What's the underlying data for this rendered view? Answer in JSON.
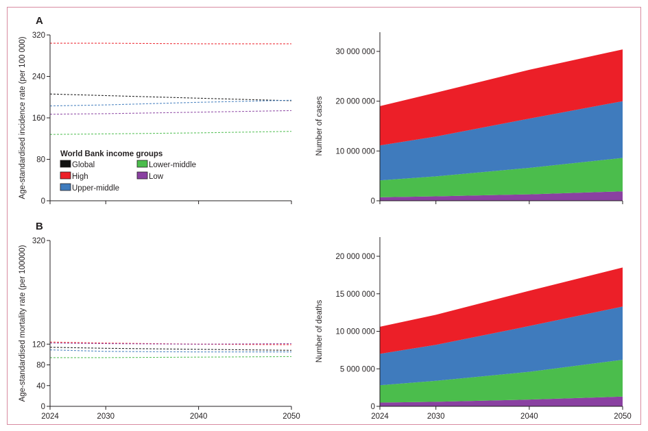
{
  "colors": {
    "Global": "#111111",
    "High": "#ec1f28",
    "Upper-middle": "#3f7bbd",
    "Lower-middle": "#4bbd4c",
    "Low": "#8a41a1"
  },
  "legend": {
    "title": "World Bank income groups",
    "items": [
      "Global",
      "High",
      "Upper-middle",
      "Lower-middle",
      "Low"
    ]
  },
  "chart_data": [
    {
      "id": "A-rate",
      "panel": "A",
      "type": "line",
      "title": "",
      "xlabel": "",
      "ylabel": "Age-standardised incidence rate (per 100 000)",
      "x": [
        2024,
        2030,
        2040,
        2050
      ],
      "xlim": [
        2024,
        2050
      ],
      "ylim": [
        0,
        320
      ],
      "xticks": [
        "2024",
        "2030",
        "2040",
        "2050"
      ],
      "yticks": [
        0,
        80,
        160,
        240,
        320
      ],
      "ytick_labels": [
        "0",
        "80",
        "160",
        "240",
        "320"
      ],
      "line_style": "dashed",
      "grid": false,
      "legend_position": "bottom-left",
      "series": [
        {
          "name": "High",
          "values": [
            304,
            304,
            303,
            303
          ]
        },
        {
          "name": "Global",
          "values": [
            206,
            203,
            198,
            193
          ]
        },
        {
          "name": "Upper-middle",
          "values": [
            183,
            185,
            190,
            194
          ]
        },
        {
          "name": "Low",
          "values": [
            167,
            168,
            171,
            174
          ]
        },
        {
          "name": "Lower-middle",
          "values": [
            128,
            129,
            131,
            134
          ]
        }
      ]
    },
    {
      "id": "A-count",
      "panel": "A",
      "type": "area",
      "stacked": true,
      "title": "",
      "xlabel": "",
      "ylabel": "Number of cases",
      "x": [
        2024,
        2030,
        2040,
        2050
      ],
      "xlim": [
        2024,
        2050
      ],
      "ylim": [
        0,
        32000000
      ],
      "xticks": [
        "2024",
        "2030",
        "2040",
        "2050"
      ],
      "yticks": [
        0,
        10000000,
        20000000,
        30000000
      ],
      "ytick_labels": [
        "0",
        "10 000 000",
        "20 000 000",
        "30 000 000"
      ],
      "grid": false,
      "series": [
        {
          "name": "Low",
          "values": [
            700000,
            900000,
            1300000,
            1900000
          ]
        },
        {
          "name": "Lower-middle",
          "values": [
            3400000,
            4000000,
            5300000,
            6700000
          ]
        },
        {
          "name": "Upper-middle",
          "values": [
            7000000,
            8000000,
            9900000,
            11400000
          ]
        },
        {
          "name": "High",
          "values": [
            7900000,
            8800000,
            9800000,
            10400000
          ]
        }
      ]
    },
    {
      "id": "B-rate",
      "panel": "B",
      "type": "line",
      "title": "",
      "xlabel": "",
      "ylabel": "Age-standardised mortality rate (per 100000)",
      "x": [
        2024,
        2030,
        2040,
        2050
      ],
      "xlim": [
        2024,
        2050
      ],
      "ylim": [
        0,
        320
      ],
      "xticks": [
        "2024",
        "2030",
        "2040",
        "2050"
      ],
      "yticks": [
        0,
        40,
        80,
        120,
        320
      ],
      "ytick_labels": [
        "0",
        "40",
        "80",
        "120",
        "320"
      ],
      "line_style": "dashed",
      "grid": false,
      "series": [
        {
          "name": "High",
          "values": [
            124,
            122,
            120,
            119
          ]
        },
        {
          "name": "Low",
          "values": [
            122,
            121,
            120,
            121
          ]
        },
        {
          "name": "Global",
          "values": [
            114,
            112,
            110,
            108
          ]
        },
        {
          "name": "Upper-middle",
          "values": [
            109,
            106,
            105,
            105
          ]
        },
        {
          "name": "Lower-middle",
          "values": [
            94,
            94,
            95,
            96
          ]
        }
      ]
    },
    {
      "id": "B-count",
      "panel": "B",
      "type": "area",
      "stacked": true,
      "title": "",
      "xlabel": "",
      "ylabel": "Number of deaths",
      "x": [
        2024,
        2030,
        2040,
        2050
      ],
      "xlim": [
        2024,
        2050
      ],
      "ylim": [
        0,
        22000000
      ],
      "xticks": [
        "2024",
        "2030",
        "2040",
        "2050"
      ],
      "yticks": [
        0,
        5000000,
        10000000,
        15000000,
        20000000
      ],
      "ytick_labels": [
        "0",
        "5 000 000",
        "10 000 000",
        "15 000 000",
        "20 000 000"
      ],
      "grid": false,
      "series": [
        {
          "name": "Low",
          "values": [
            500000,
            600000,
            900000,
            1300000
          ]
        },
        {
          "name": "Lower-middle",
          "values": [
            2300000,
            2800000,
            3700000,
            4900000
          ]
        },
        {
          "name": "Upper-middle",
          "values": [
            4200000,
            4800000,
            6100000,
            7100000
          ]
        },
        {
          "name": "High",
          "values": [
            3600000,
            4000000,
            4700000,
            5200000
          ]
        }
      ]
    }
  ],
  "panels": {
    "A": "A",
    "B": "B"
  }
}
